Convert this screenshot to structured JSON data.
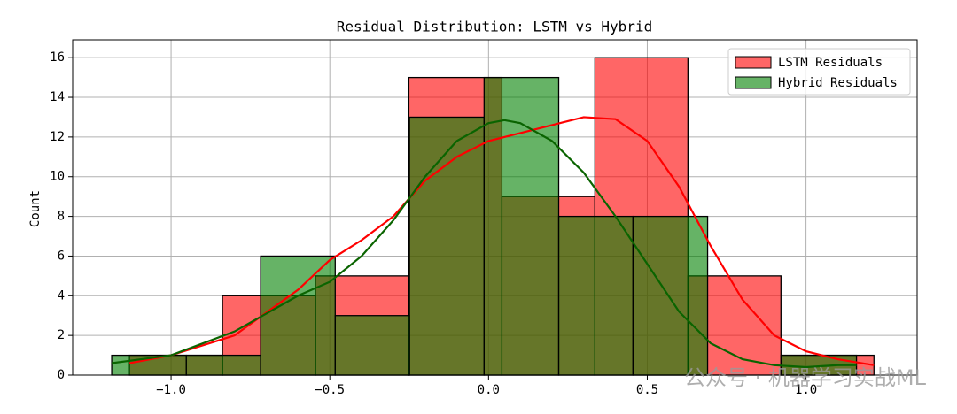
{
  "chart_data": {
    "type": "histogram",
    "title": "Residual Distribution: LSTM vs Hybrid",
    "ylabel": "Count",
    "xlim": [
      -1.31,
      1.35
    ],
    "ylim": [
      0,
      16.9
    ],
    "xticks": [
      {
        "value": -1.0,
        "label": "−1.0"
      },
      {
        "value": -0.5,
        "label": "−0.5"
      },
      {
        "value": 0,
        "label": "0.0"
      },
      0.5,
      {
        "value": 1.0,
        "label": "1.0"
      }
    ],
    "yticks": [
      0,
      2,
      4,
      6,
      8,
      10,
      12,
      14,
      16
    ],
    "grid": true,
    "legend": "upper right",
    "alpha": 0.6,
    "series": [
      {
        "name": "LSTM Residuals",
        "color": "#ff0000",
        "line_color": "#ff0000",
        "bins": [
          -1.131,
          -0.838,
          -0.545,
          -0.251,
          0.042,
          0.335,
          0.628,
          0.921,
          1.214
        ],
        "values": [
          1,
          4,
          5,
          15,
          9,
          16,
          5,
          1
        ],
        "kde": {
          "x": [
            -1.131,
            -1.0,
            -0.8,
            -0.6,
            -0.5,
            -0.4,
            -0.3,
            -0.2,
            -0.1,
            0,
            0.1,
            0.2,
            0.3,
            0.4,
            0.5,
            0.6,
            0.7,
            0.8,
            0.9,
            1.0,
            1.1,
            1.214
          ],
          "y": [
            0.6,
            1.0,
            2.0,
            4.3,
            5.8,
            6.8,
            8.0,
            9.8,
            11.0,
            11.8,
            12.2,
            12.6,
            13.0,
            12.9,
            11.8,
            9.5,
            6.5,
            3.8,
            2.0,
            1.2,
            0.8,
            0.5
          ]
        }
      },
      {
        "name": "Hybrid Residuals",
        "color": "#008000",
        "line_color": "#0a6400",
        "bins": [
          -1.187,
          -0.952,
          -0.718,
          -0.483,
          -0.249,
          -0.014,
          0.221,
          0.455,
          0.69,
          0.924,
          1.159
        ],
        "values": [
          1,
          1,
          6,
          3,
          13,
          15,
          8,
          8,
          0,
          1
        ],
        "kde": {
          "x": [
            -1.187,
            -1.0,
            -0.8,
            -0.6,
            -0.5,
            -0.4,
            -0.3,
            -0.2,
            -0.1,
            0,
            0.05,
            0.1,
            0.2,
            0.3,
            0.4,
            0.5,
            0.6,
            0.7,
            0.8,
            0.9,
            1.0,
            1.1,
            1.159
          ],
          "y": [
            0.6,
            1.0,
            2.2,
            4.0,
            4.7,
            6.0,
            7.8,
            10.0,
            11.8,
            12.7,
            12.85,
            12.7,
            11.8,
            10.2,
            8.0,
            5.6,
            3.2,
            1.6,
            0.8,
            0.5,
            0.4,
            0.5,
            0.5
          ]
        }
      }
    ],
    "watermark": "公众号 · 机器学习实战ML"
  }
}
